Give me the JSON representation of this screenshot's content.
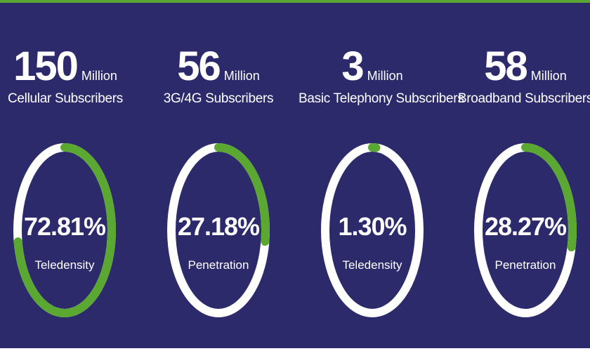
{
  "chart_data": {
    "type": "donut",
    "items": [
      {
        "number": "150",
        "unit": "Million",
        "label": "Cellular Subscribers",
        "percent_text": "72.81%",
        "percent": 72.81,
        "metric": "Teledensity"
      },
      {
        "number": "56",
        "unit": "Million",
        "label": "3G/4G Subscribers",
        "percent_text": "27.18%",
        "percent": 27.18,
        "metric": "Penetration"
      },
      {
        "number": "3",
        "unit": "Million",
        "label": "Basic Telephony Subscribers",
        "percent_text": "1.30%",
        "percent": 1.3,
        "metric": "Teledensity"
      },
      {
        "number": "58",
        "unit": "Million",
        "label": "Broadband Subscribers",
        "percent_text": "28.27%",
        "percent": 28.27,
        "metric": "Penetration"
      }
    ]
  },
  "colors": {
    "background": "#2c2a6b",
    "accent": "#5aa832",
    "track": "#ffffff",
    "text": "#ffffff"
  }
}
